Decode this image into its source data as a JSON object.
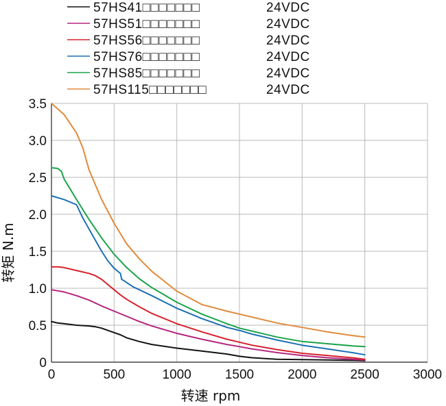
{
  "chart_data": {
    "type": "line",
    "xlabel": "转速 rpm",
    "ylabel": "转矩 N.m",
    "xlim": [
      0,
      3000
    ],
    "ylim": [
      0,
      3.5
    ],
    "x_ticks": [
      "0",
      "500",
      "1000",
      "1500",
      "2000",
      "2500",
      "3000"
    ],
    "y_ticks": [
      "0",
      "0.5",
      "1.0",
      "1.5",
      "2.0",
      "2.5",
      "3.0",
      "3.5"
    ],
    "grid": true,
    "legend_position": "top",
    "series": [
      {
        "name": "57HS41□□□□□□□",
        "voltage": "24VDC",
        "color": "#111111",
        "x": [
          0,
          50,
          100,
          200,
          300,
          350,
          400,
          450,
          500,
          550,
          600,
          700,
          800,
          1000,
          1200,
          1400,
          1500,
          1600,
          1800,
          2000,
          2200,
          2400,
          2500
        ],
        "y": [
          0.55,
          0.53,
          0.52,
          0.5,
          0.49,
          0.48,
          0.46,
          0.43,
          0.4,
          0.37,
          0.33,
          0.28,
          0.24,
          0.19,
          0.15,
          0.11,
          0.08,
          0.06,
          0.04,
          0.035,
          0.03,
          0.025,
          0.02
        ]
      },
      {
        "name": "57HS51□□□□□□□",
        "voltage": "24VDC",
        "color": "#b5247e",
        "x": [
          0,
          100,
          200,
          300,
          400,
          500,
          600,
          700,
          800,
          1000,
          1200,
          1400,
          1500,
          1600,
          1800,
          2000,
          2200,
          2400,
          2500
        ],
        "y": [
          0.98,
          0.95,
          0.9,
          0.84,
          0.76,
          0.69,
          0.62,
          0.55,
          0.49,
          0.39,
          0.31,
          0.24,
          0.21,
          0.18,
          0.13,
          0.09,
          0.06,
          0.04,
          0.03
        ]
      },
      {
        "name": "57HS56□□□□□□□",
        "voltage": "24VDC",
        "color": "#d6202a",
        "x": [
          0,
          50,
          100,
          200,
          300,
          350,
          400,
          450,
          500,
          550,
          600,
          700,
          800,
          1000,
          1200,
          1400,
          1500,
          1600,
          1800,
          2000,
          2200,
          2400,
          2500
        ],
        "y": [
          1.29,
          1.29,
          1.28,
          1.24,
          1.2,
          1.17,
          1.12,
          1.05,
          0.98,
          0.91,
          0.85,
          0.75,
          0.66,
          0.52,
          0.41,
          0.31,
          0.27,
          0.23,
          0.17,
          0.12,
          0.09,
          0.06,
          0.04
        ]
      },
      {
        "name": "57HS76□□□□□□□",
        "voltage": "24VDC",
        "color": "#1a6fb5",
        "x": [
          0,
          100,
          200,
          250,
          300,
          350,
          400,
          450,
          500,
          550,
          560,
          580,
          650,
          800,
          1000,
          1200,
          1400,
          1500,
          1600,
          1800,
          2000,
          2200,
          2400,
          2500
        ],
        "y": [
          2.25,
          2.2,
          2.13,
          1.95,
          1.8,
          1.65,
          1.5,
          1.37,
          1.27,
          1.2,
          1.12,
          1.1,
          1.02,
          0.9,
          0.73,
          0.59,
          0.47,
          0.43,
          0.38,
          0.3,
          0.23,
          0.18,
          0.13,
          0.1
        ]
      },
      {
        "name": "57HS85□□□□□□□",
        "voltage": "24VDC",
        "color": "#1aa34a",
        "x": [
          0,
          50,
          80,
          100,
          200,
          300,
          400,
          500,
          600,
          700,
          800,
          1000,
          1200,
          1400,
          1500,
          1600,
          1800,
          2000,
          2200,
          2400,
          2500
        ],
        "y": [
          2.63,
          2.62,
          2.58,
          2.48,
          2.2,
          1.93,
          1.68,
          1.46,
          1.28,
          1.13,
          1.01,
          0.81,
          0.65,
          0.52,
          0.46,
          0.42,
          0.34,
          0.28,
          0.25,
          0.22,
          0.21
        ]
      },
      {
        "name": "57HS115□□□□□□□",
        "voltage": "24VDC",
        "color": "#e08a3a",
        "x": [
          0,
          100,
          200,
          250,
          300,
          400,
          500,
          600,
          700,
          800,
          1000,
          1200,
          1400,
          1500,
          1600,
          1800,
          2000,
          2200,
          2400,
          2500
        ],
        "y": [
          3.5,
          3.35,
          3.1,
          2.9,
          2.6,
          2.2,
          1.88,
          1.6,
          1.4,
          1.23,
          0.96,
          0.78,
          0.69,
          0.65,
          0.61,
          0.53,
          0.47,
          0.41,
          0.36,
          0.34
        ]
      }
    ]
  }
}
